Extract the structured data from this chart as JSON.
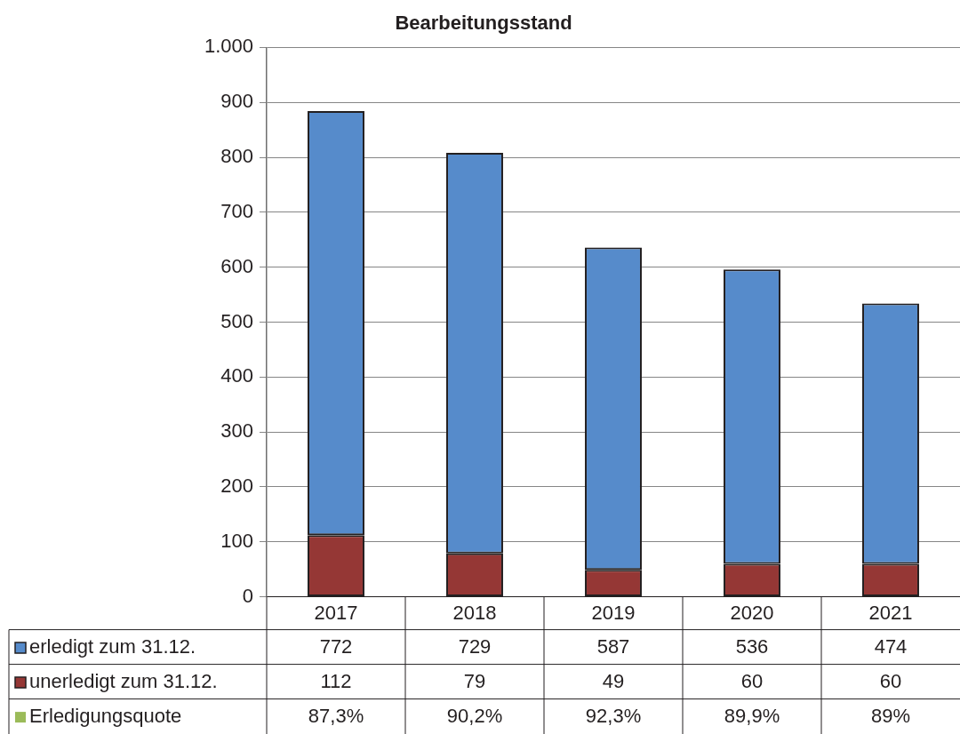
{
  "chart_data": {
    "type": "bar",
    "title": "Bearbeitungsstand",
    "categories": [
      "2017",
      "2018",
      "2019",
      "2020",
      "2021"
    ],
    "stacked": true,
    "series": [
      {
        "name": "unerledigt zum 31.12.",
        "color": "#953735",
        "values": [
          112,
          79,
          49,
          60,
          60
        ]
      },
      {
        "name": "erledigt zum 31.12.",
        "color": "#568bcb",
        "values": [
          772,
          729,
          587,
          536,
          474
        ]
      },
      {
        "name": "Erledigungsquote",
        "type": "line",
        "color": "#9bbb59",
        "values": [
          null,
          null,
          null,
          null,
          null
        ],
        "value_labels": [
          "87,3%",
          "90,2%",
          "92,3%",
          "89,9%",
          "89%"
        ]
      }
    ],
    "ylim": [
      0,
      1000
    ],
    "yticks": [
      0,
      100,
      200,
      300,
      400,
      500,
      600,
      700,
      800,
      900,
      {
        "value": 1000,
        "label": "1.000"
      }
    ],
    "grid": "y",
    "legend": "bottom left",
    "data_labels": true
  }
}
